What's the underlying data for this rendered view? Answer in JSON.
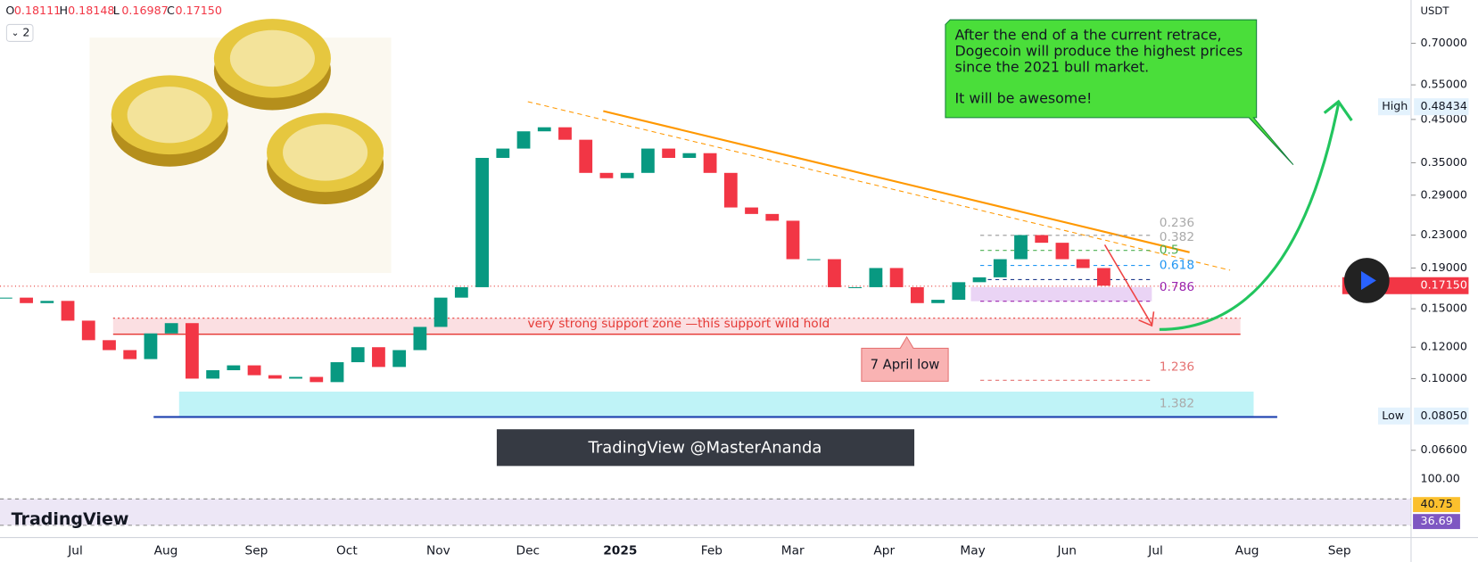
{
  "header": {
    "ohlc": [
      {
        "key": "O",
        "value": "0.18111"
      },
      {
        "key": "H",
        "value": "0.18148"
      },
      {
        "key": "L",
        "value": "0.16987"
      },
      {
        "key": "C",
        "value": "0.17150"
      }
    ],
    "indicator_count": "2"
  },
  "chart": {
    "currency": "USDT",
    "log_scale": true,
    "ylim": [
      0.054,
      0.9
    ],
    "yticks": [
      {
        "value": 0.7,
        "label": "0.70000"
      },
      {
        "value": 0.55,
        "label": "0.55000"
      },
      {
        "value": 0.45,
        "label": "0.45000"
      },
      {
        "value": 0.35,
        "label": "0.35000"
      },
      {
        "value": 0.29,
        "label": "0.29000"
      },
      {
        "value": 0.23,
        "label": "0.23000"
      },
      {
        "value": 0.19,
        "label": "0.19000"
      },
      {
        "value": 0.15,
        "label": "0.15000"
      },
      {
        "value": 0.12,
        "label": "0.12000"
      },
      {
        "value": 0.1,
        "label": "0.10000"
      },
      {
        "value": 0.066,
        "label": "0.06600"
      }
    ],
    "closes": [
      0.16,
      0.155,
      0.157,
      0.14,
      0.125,
      0.118,
      0.112,
      0.13,
      0.138,
      0.1,
      0.105,
      0.108,
      0.102,
      0.1,
      0.101,
      0.098,
      0.11,
      0.12,
      0.107,
      0.118,
      0.135,
      0.16,
      0.17,
      0.36,
      0.38,
      0.42,
      0.43,
      0.4,
      0.33,
      0.32,
      0.33,
      0.38,
      0.36,
      0.37,
      0.33,
      0.27,
      0.26,
      0.25,
      0.2,
      0.2,
      0.17,
      0.17,
      0.19,
      0.17,
      0.155,
      0.158,
      0.175,
      0.18,
      0.2,
      0.23,
      0.22,
      0.2,
      0.19,
      0.1715
    ],
    "high": {
      "name": "High",
      "price": {
        "value": 0.48434,
        "label": "0.48434"
      }
    },
    "low": {
      "name": "Low",
      "price": {
        "value": 0.0805,
        "label": "0.08050"
      }
    },
    "last": {
      "value": 0.1715,
      "label": "0.17150"
    },
    "time_labels": [
      "Jul",
      "Aug",
      "Sep",
      "Oct",
      "Nov",
      "Dec",
      "2025",
      "Feb",
      "Mar",
      "Apr",
      "May",
      "Jun",
      "Jul",
      "Aug",
      "Sep"
    ],
    "fib_labels": [
      "0.236",
      "0.382",
      "0.5",
      "0.618",
      "0.786",
      "1.236",
      "1.382"
    ],
    "support_text": "very strong support zone —this support wild hold",
    "april_low": "7 April low",
    "rsi": {
      "top": "100.00",
      "values": [
        "40.75",
        "36.69"
      ]
    }
  },
  "callout": {
    "lines": [
      "After the end of a the current retrace,",
      "Dogecoin will produce the highest prices",
      "since the 2021 bull market.",
      "It will be awesome!"
    ]
  },
  "watermark": "TradingView @MasterAnanda",
  "logo": "TradingView"
}
